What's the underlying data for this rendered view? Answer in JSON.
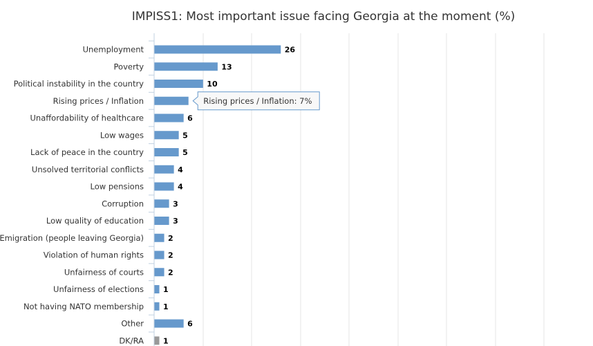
{
  "chart_data": {
    "type": "bar",
    "orientation": "horizontal",
    "title": "IMPISS1: Most important issue facing Georgia at the moment (%)",
    "xlim": [
      0,
      80
    ],
    "grid": true,
    "categories": [
      "Unemployment",
      "Poverty",
      "Political instability in the country",
      "Rising prices / Inflation",
      "Unaffordability of healthcare",
      "Low wages",
      "Lack of peace in the country",
      "Unsolved territorial conflicts",
      "Low pensions",
      "Corruption",
      "Low quality of education",
      "Emigration (people leaving Georgia)",
      "Violation of human rights",
      "Unfairness of courts",
      "Unfairness of elections",
      "Not having NATO membership",
      "Other",
      "DK/RA"
    ],
    "values": [
      26,
      13,
      10,
      7,
      6,
      5,
      5,
      4,
      4,
      3,
      3,
      2,
      2,
      2,
      1,
      1,
      6,
      1
    ],
    "value_labels": [
      "26",
      "13",
      "10",
      "",
      "6",
      "5",
      "5",
      "4",
      "4",
      "3",
      "3",
      "2",
      "2",
      "2",
      "1",
      "1",
      "6",
      "1"
    ],
    "bar_colors": [
      "#6699cc",
      "#6699cc",
      "#6699cc",
      "#6699cc",
      "#6699cc",
      "#6699cc",
      "#6699cc",
      "#6699cc",
      "#6699cc",
      "#6699cc",
      "#6699cc",
      "#6699cc",
      "#6699cc",
      "#6699cc",
      "#6699cc",
      "#6699cc",
      "#6699cc",
      "#999999"
    ],
    "tooltip": {
      "category_index": 3,
      "text": "Rising prices / Inflation: 7%"
    }
  }
}
